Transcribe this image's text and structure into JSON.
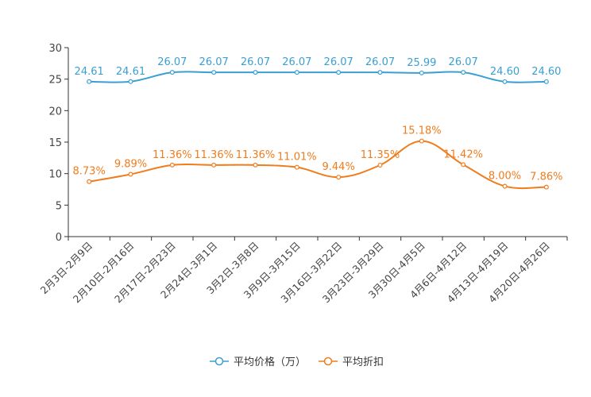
{
  "chart_data": {
    "type": "line",
    "title": "",
    "xlabel": "",
    "ylabel": "",
    "ylim": [
      0,
      30
    ],
    "yticks": [
      0,
      5,
      10,
      15,
      20,
      25,
      30
    ],
    "grid": false,
    "legend_position": "bottom-center",
    "categories": [
      "2月3日-2月9日",
      "2月10日-2月16日",
      "2月17日-2月23日",
      "2月24日-3月1日",
      "3月2日-3月8日",
      "3月9日-3月15日",
      "3月16日-3月22日",
      "3月23日-3月29日",
      "3月30日-4月5日",
      "4月6日-4月12日",
      "4月13日-4月19日",
      "4月20日-4月26日"
    ],
    "series": [
      {
        "name": "平均价格（万）",
        "color": "#3b9fd1",
        "values": [
          24.61,
          24.61,
          26.07,
          26.07,
          26.07,
          26.07,
          26.07,
          26.07,
          25.99,
          26.07,
          24.6,
          24.6
        ],
        "labels": [
          "24.61",
          "24.61",
          "26.07",
          "26.07",
          "26.07",
          "26.07",
          "26.07",
          "26.07",
          "25.99",
          "26.07",
          "24.60",
          "24.60"
        ]
      },
      {
        "name": "平均折扣",
        "color": "#f07c1c",
        "values": [
          8.73,
          9.89,
          11.36,
          11.36,
          11.36,
          11.01,
          9.44,
          11.35,
          15.18,
          11.42,
          8.0,
          7.86
        ],
        "labels": [
          "8.73%",
          "9.89%",
          "11.36%",
          "11.36%",
          "11.36%",
          "11.01%",
          "9.44%",
          "11.35%",
          "15.18%",
          "11.42%",
          "8.00%",
          "7.86%"
        ]
      }
    ]
  }
}
